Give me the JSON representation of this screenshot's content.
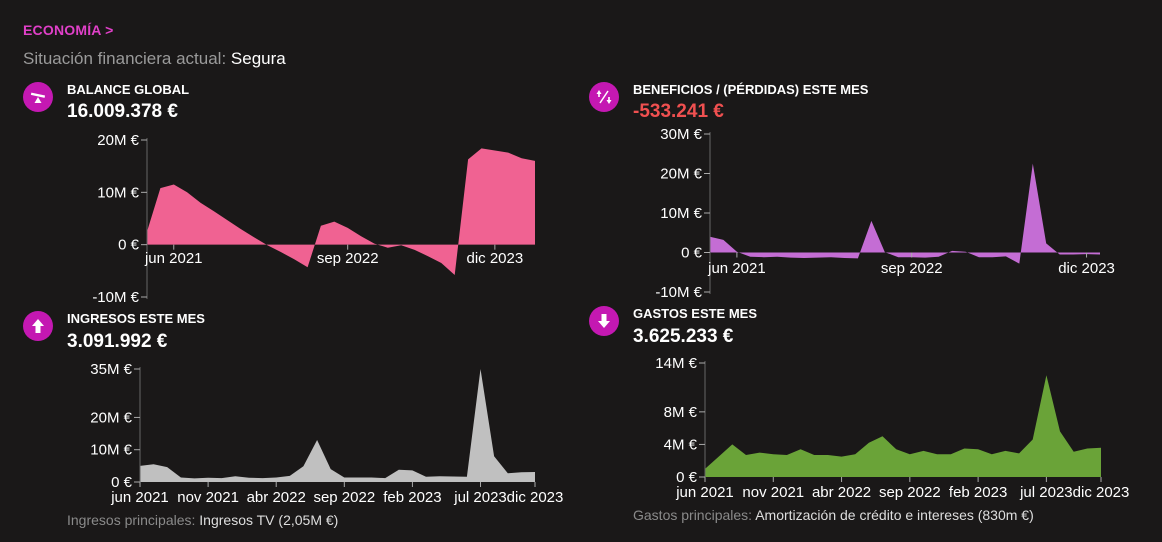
{
  "header": {
    "section_link": "ECONOMÍA >",
    "status_label": "Situación financiera actual:",
    "status_value": "Segura"
  },
  "panels": {
    "balance": {
      "title": "BALANCE GLOBAL",
      "value": "16.009.378 €",
      "icon": "seesaw-icon",
      "color": "#f06292"
    },
    "profit": {
      "title": "BENEFICIOS / (PÉRDIDAS) ESTE MES",
      "value": "-533.241 €",
      "icon": "up-down-arrows-icon",
      "color": "#c46dd4"
    },
    "income": {
      "title": "INGRESOS ESTE MES",
      "value": "3.091.992 €",
      "icon": "arrow-up-icon",
      "color": "#c0c0c0"
    },
    "expenses": {
      "title": "GASTOS ESTE MES",
      "value": "3.625.233 €",
      "icon": "arrow-down-icon",
      "color": "#6aa338"
    }
  },
  "footer": {
    "income_label": "Ingresos principales:",
    "income_value": "Ingresos TV (2,05M €)",
    "expenses_label": "Gastos principales:",
    "expenses_value": "Amortización de crédito e intereses (830m €)"
  },
  "chart_data": [
    {
      "type": "area",
      "title": "BALANCE GLOBAL",
      "ylim": [
        -10,
        20
      ],
      "ytick_values": [
        -10,
        0,
        10,
        20
      ],
      "ytick_labels": [
        "-10M €",
        "0 €",
        "10M €",
        "20M €"
      ],
      "xtick_positions": [
        2,
        15,
        26
      ],
      "xtick_labels": [
        "jun 2021",
        "sep 2022",
        "dic 2023"
      ],
      "values": [
        2.5,
        10.8,
        11.5,
        10,
        8,
        6.4,
        4.7,
        3,
        1.4,
        -0.1,
        -1.4,
        -2.8,
        -4.3,
        3.6,
        4.4,
        3.2,
        1.6,
        0.2,
        -0.6,
        -0.1,
        -1,
        -2.2,
        -3.5,
        -5.8,
        16.3,
        18.4,
        18,
        17.6,
        16.5,
        16.0
      ]
    },
    {
      "type": "area",
      "title": "BENEFICIOS / (PÉRDIDAS) ESTE MES",
      "ylim": [
        -10,
        30
      ],
      "ytick_values": [
        -10,
        0,
        10,
        20,
        30
      ],
      "ytick_labels": [
        "-10M €",
        "0 €",
        "10M €",
        "20M €",
        "30M €"
      ],
      "xtick_positions": [
        2,
        15,
        28
      ],
      "xtick_labels": [
        "jun 2021",
        "sep 2022",
        "dic 2023"
      ],
      "values": [
        4,
        3.2,
        0.2,
        -1.1,
        -1.2,
        -1.1,
        -1.3,
        -1.4,
        -1.3,
        -1.2,
        -1.4,
        -1.5,
        8,
        0.1,
        -1.2,
        -1.2,
        -1.3,
        -1.1,
        0.4,
        0.2,
        -1.2,
        -1.2,
        -1,
        -2.8,
        22.5,
        2.3,
        -0.5,
        -0.5,
        -0.4,
        -0.5
      ]
    },
    {
      "type": "area",
      "title": "INGRESOS ESTE MES",
      "ylim": [
        0,
        35
      ],
      "ytick_values": [
        0,
        10,
        20,
        35
      ],
      "ytick_labels": [
        "0 €",
        "10M €",
        "20M €",
        "35M €"
      ],
      "xtick_positions": [
        0,
        5,
        10,
        15,
        20,
        25,
        29
      ],
      "xtick_labels": [
        "jun 2021",
        "nov 2021",
        "abr 2022",
        "sep 2022",
        "feb 2023",
        "jul 2023",
        "dic 2023"
      ],
      "values": [
        5,
        5.5,
        4.6,
        1.4,
        1.1,
        1.3,
        1.2,
        1.8,
        1.3,
        1.2,
        1.4,
        1.9,
        4.9,
        13,
        4,
        1.4,
        1.4,
        1.4,
        1.2,
        3.8,
        3.6,
        1.6,
        1.8,
        1.7,
        1.6,
        35,
        8,
        2.7,
        3,
        3.1
      ]
    },
    {
      "type": "area",
      "title": "GASTOS ESTE MES",
      "ylim": [
        0,
        14
      ],
      "ytick_values": [
        0,
        4,
        8,
        14
      ],
      "ytick_labels": [
        "0 €",
        "4M €",
        "8M €",
        "14M €"
      ],
      "xtick_positions": [
        0,
        5,
        10,
        15,
        20,
        25,
        29
      ],
      "xtick_labels": [
        "jun 2021",
        "nov 2021",
        "abr 2022",
        "sep 2022",
        "feb 2023",
        "jul 2023",
        "dic 2023"
      ],
      "values": [
        1,
        2.5,
        4,
        2.7,
        3,
        2.8,
        2.7,
        3.4,
        2.7,
        2.7,
        2.5,
        2.8,
        4.2,
        5,
        3.4,
        2.8,
        3.2,
        2.8,
        2.8,
        3.5,
        3.4,
        2.8,
        3.2,
        2.9,
        4.6,
        12.5,
        5.6,
        3.1,
        3.5,
        3.6
      ]
    }
  ]
}
